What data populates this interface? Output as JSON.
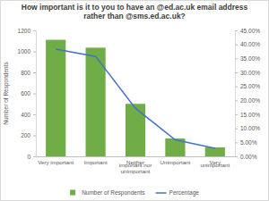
{
  "chart_data": {
    "type": "bar",
    "title": "How important is it to you to have an @ed.ac.uk email address rather than @sms.ed.ac.uk?",
    "y_label": "Number of Respondents",
    "categories": [
      "Very important",
      "Important",
      "Neither important nor unimportant",
      "Unimportant",
      "Very unimportant"
    ],
    "series": [
      {
        "name": "Number of Respondents",
        "type": "bar",
        "color": "#70ad47",
        "values": [
          1110,
          1035,
          500,
          170,
          85
        ]
      },
      {
        "name": "Percentage",
        "type": "line",
        "color": "#4472c4",
        "axis": "y2",
        "values": [
          38.3,
          35.7,
          17.2,
          5.9,
          2.9
        ]
      }
    ],
    "ylim": [
      0,
      1200
    ],
    "yticks": [
      0,
      200,
      400,
      600,
      800,
      1000,
      1200
    ],
    "y2lim": [
      0,
      45
    ],
    "y2ticks": [
      {
        "value": 0,
        "label": "0.00%"
      },
      {
        "value": 5,
        "label": "5.00%"
      },
      {
        "value": 10,
        "label": "10.00%"
      },
      {
        "value": 15,
        "label": "15.00%"
      },
      {
        "value": 20,
        "label": "20.00%"
      },
      {
        "value": 25,
        "label": "25.00%"
      },
      {
        "value": 30,
        "label": "30.00%"
      },
      {
        "value": 35,
        "label": "35.00%"
      },
      {
        "value": 40,
        "label": "40.00%"
      },
      {
        "value": 45,
        "label": "45.00%"
      }
    ],
    "grid": false,
    "legend": "bottom"
  }
}
